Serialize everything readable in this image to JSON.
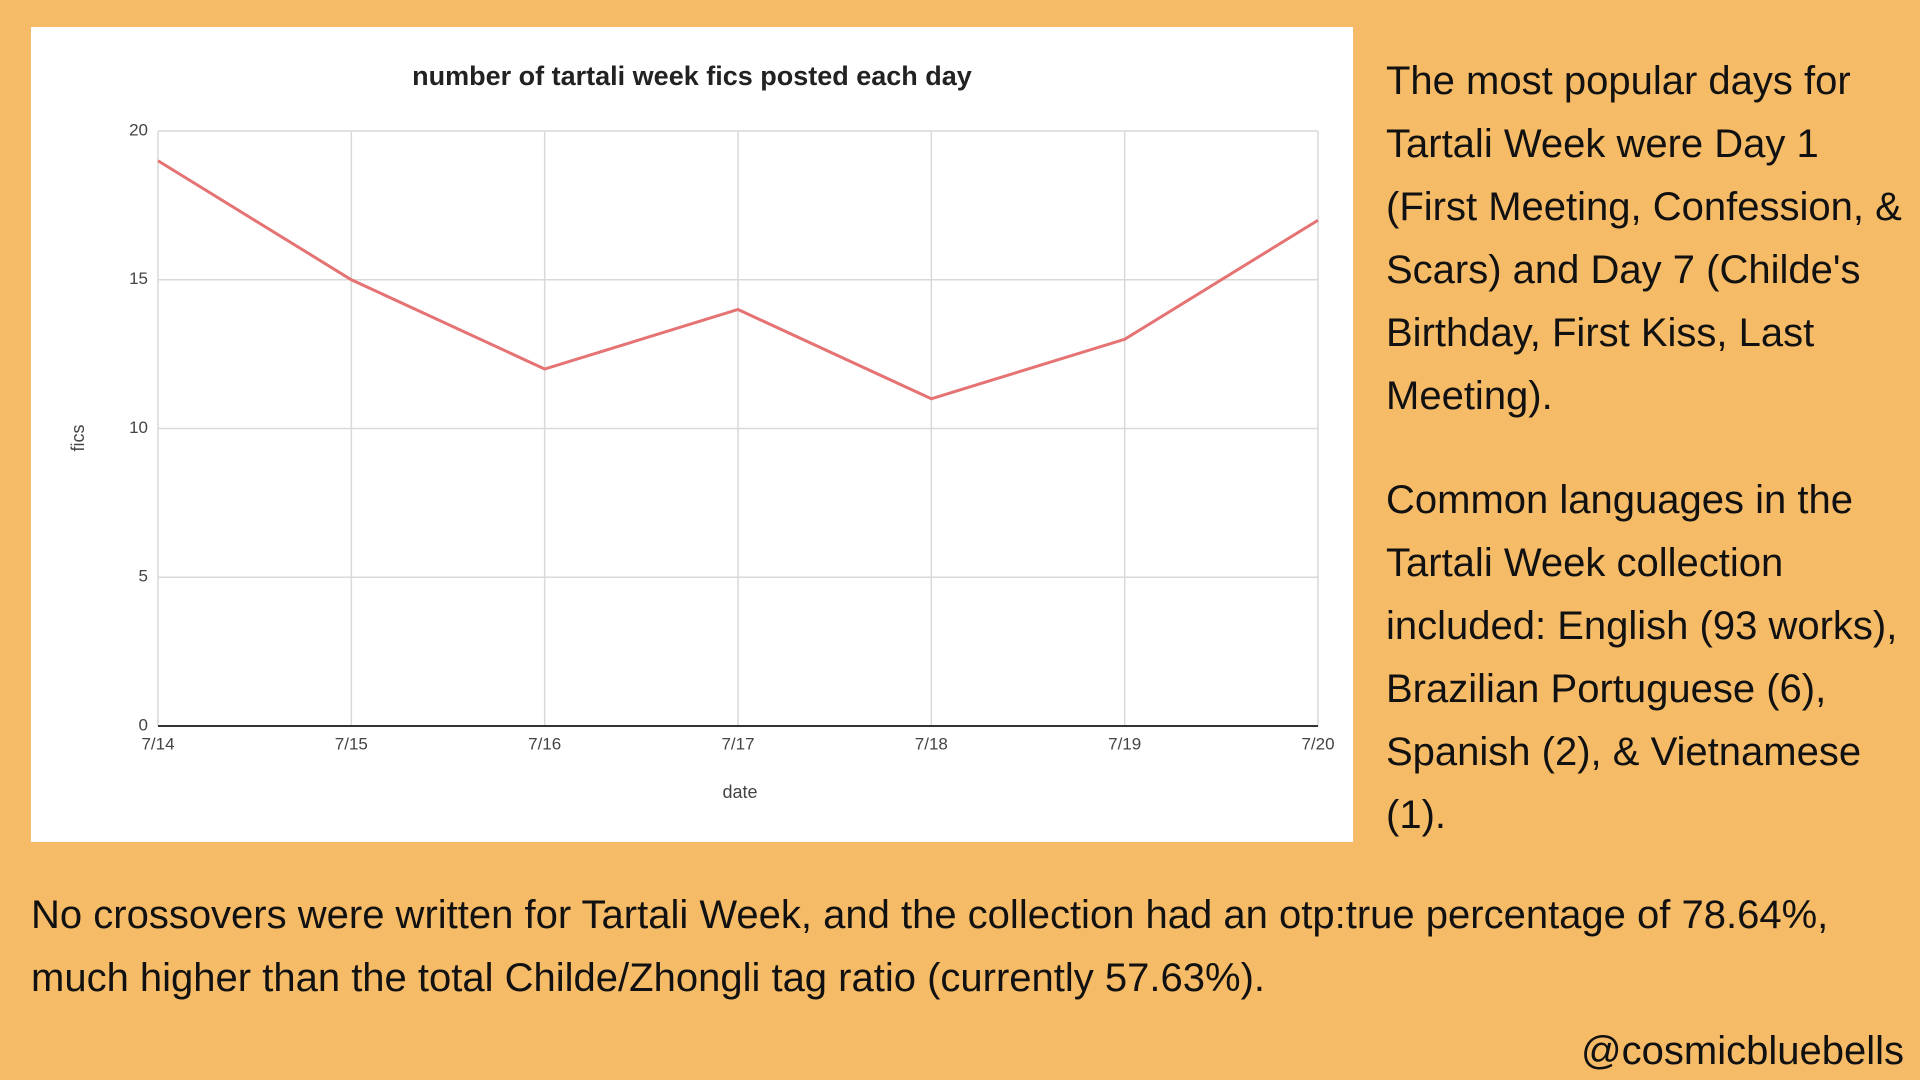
{
  "chart_data": {
    "type": "line",
    "title": "number of tartali week fics posted each day",
    "x_label": "date",
    "y_label": "fics",
    "categories": [
      "7/14",
      "7/15",
      "7/16",
      "7/17",
      "7/18",
      "7/19",
      "7/20"
    ],
    "values": [
      19,
      15,
      12,
      14,
      11,
      13,
      17
    ],
    "color": "#e57373",
    "ylim": [
      0,
      20
    ],
    "yticks": [
      0,
      5,
      10,
      15,
      20
    ],
    "grid": true
  },
  "paragraphs": [
    "The most popular days for Tartali Week were Day 1 (First Meeting, Confession, & Scars) and Day 7 (Childe's Birthday, First Kiss, Last Meeting).",
    "Common languages in the Tartali Week collection included: English (93 works), Brazilian Portuguese (6), Spanish (2), & Vietnamese (1)."
  ],
  "footer": "No crossovers were written for Tartali Week, and the collection had an otp:true percentage of 78.64%, much higher than the total Childe/Zhongli tag ratio (currently 57.63%).",
  "handle": "@cosmicbluebells"
}
